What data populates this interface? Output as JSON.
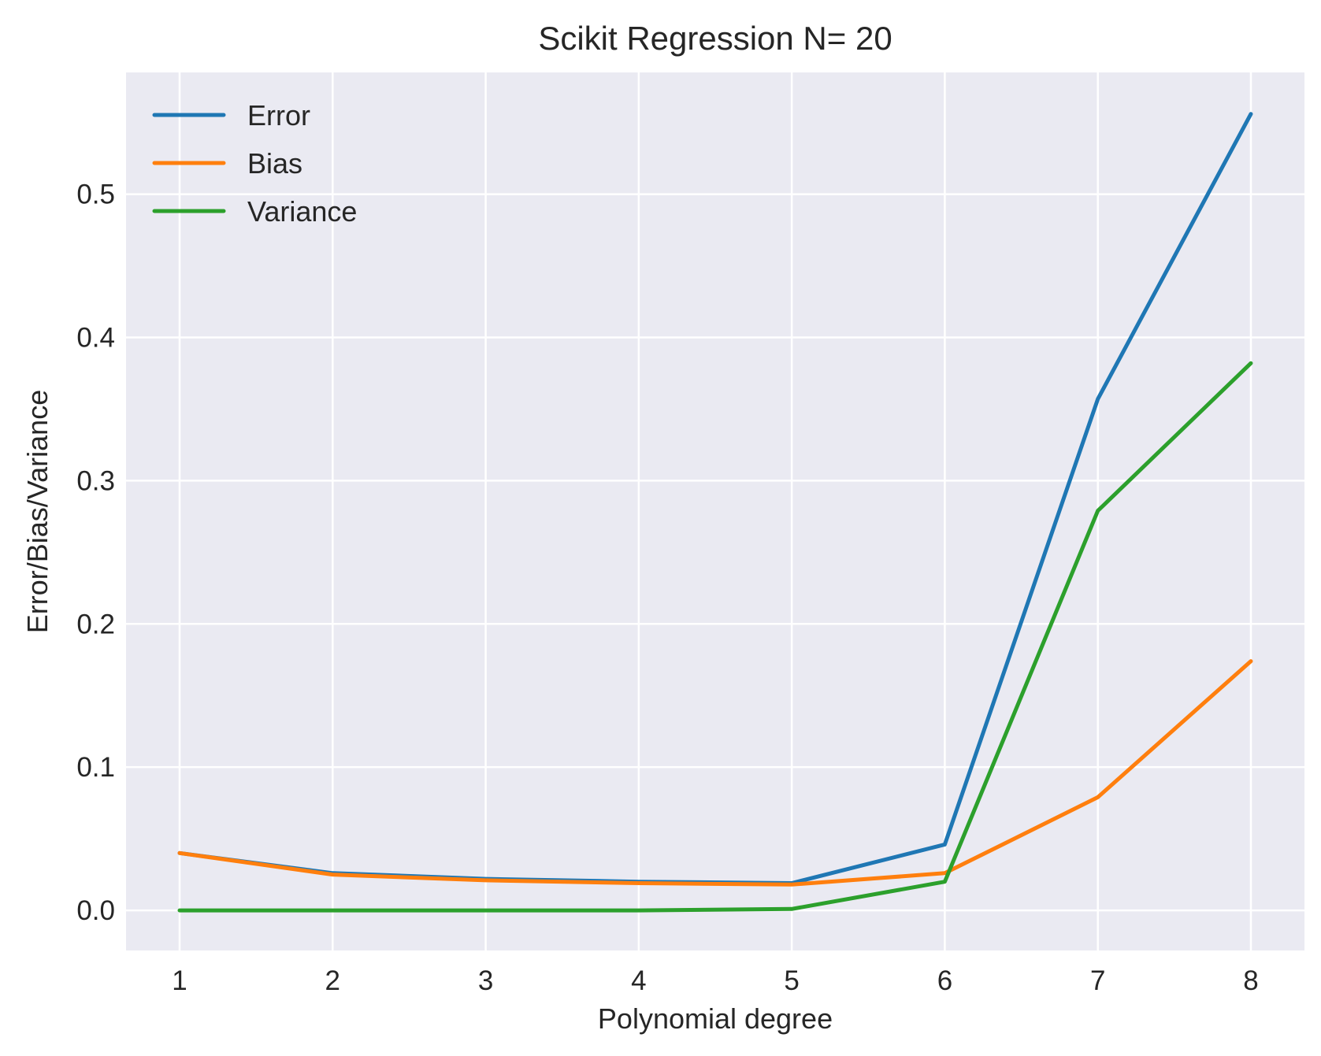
{
  "chart_data": {
    "type": "line",
    "title": "Scikit Regression N= 20",
    "xlabel": "Polynomial degree",
    "ylabel": "Error/Bias/Variance",
    "x": [
      1,
      2,
      3,
      4,
      5,
      6,
      7,
      8
    ],
    "xlim": [
      0.65,
      8.35
    ],
    "ylim": [
      -0.028,
      0.585
    ],
    "xticks": [
      1,
      2,
      3,
      4,
      5,
      6,
      7,
      8
    ],
    "yticks": [
      0.0,
      0.1,
      0.2,
      0.3,
      0.4,
      0.5
    ],
    "ytick_labels": [
      "0.0",
      "0.1",
      "0.2",
      "0.3",
      "0.4",
      "0.5"
    ],
    "grid": true,
    "legend": "top-left",
    "series": [
      {
        "name": "Error",
        "color": "#1f77b4",
        "values": [
          0.04,
          0.026,
          0.022,
          0.02,
          0.019,
          0.046,
          0.357,
          0.556
        ]
      },
      {
        "name": "Bias",
        "color": "#ff7f0e",
        "values": [
          0.04,
          0.025,
          0.021,
          0.019,
          0.018,
          0.026,
          0.079,
          0.174
        ]
      },
      {
        "name": "Variance",
        "color": "#2ca02c",
        "values": [
          0.0,
          0.0,
          0.0,
          0.0,
          0.001,
          0.02,
          0.279,
          0.382
        ]
      }
    ],
    "style": {
      "plot_bg": "#eaeaf2",
      "grid_color": "#ffffff"
    }
  }
}
